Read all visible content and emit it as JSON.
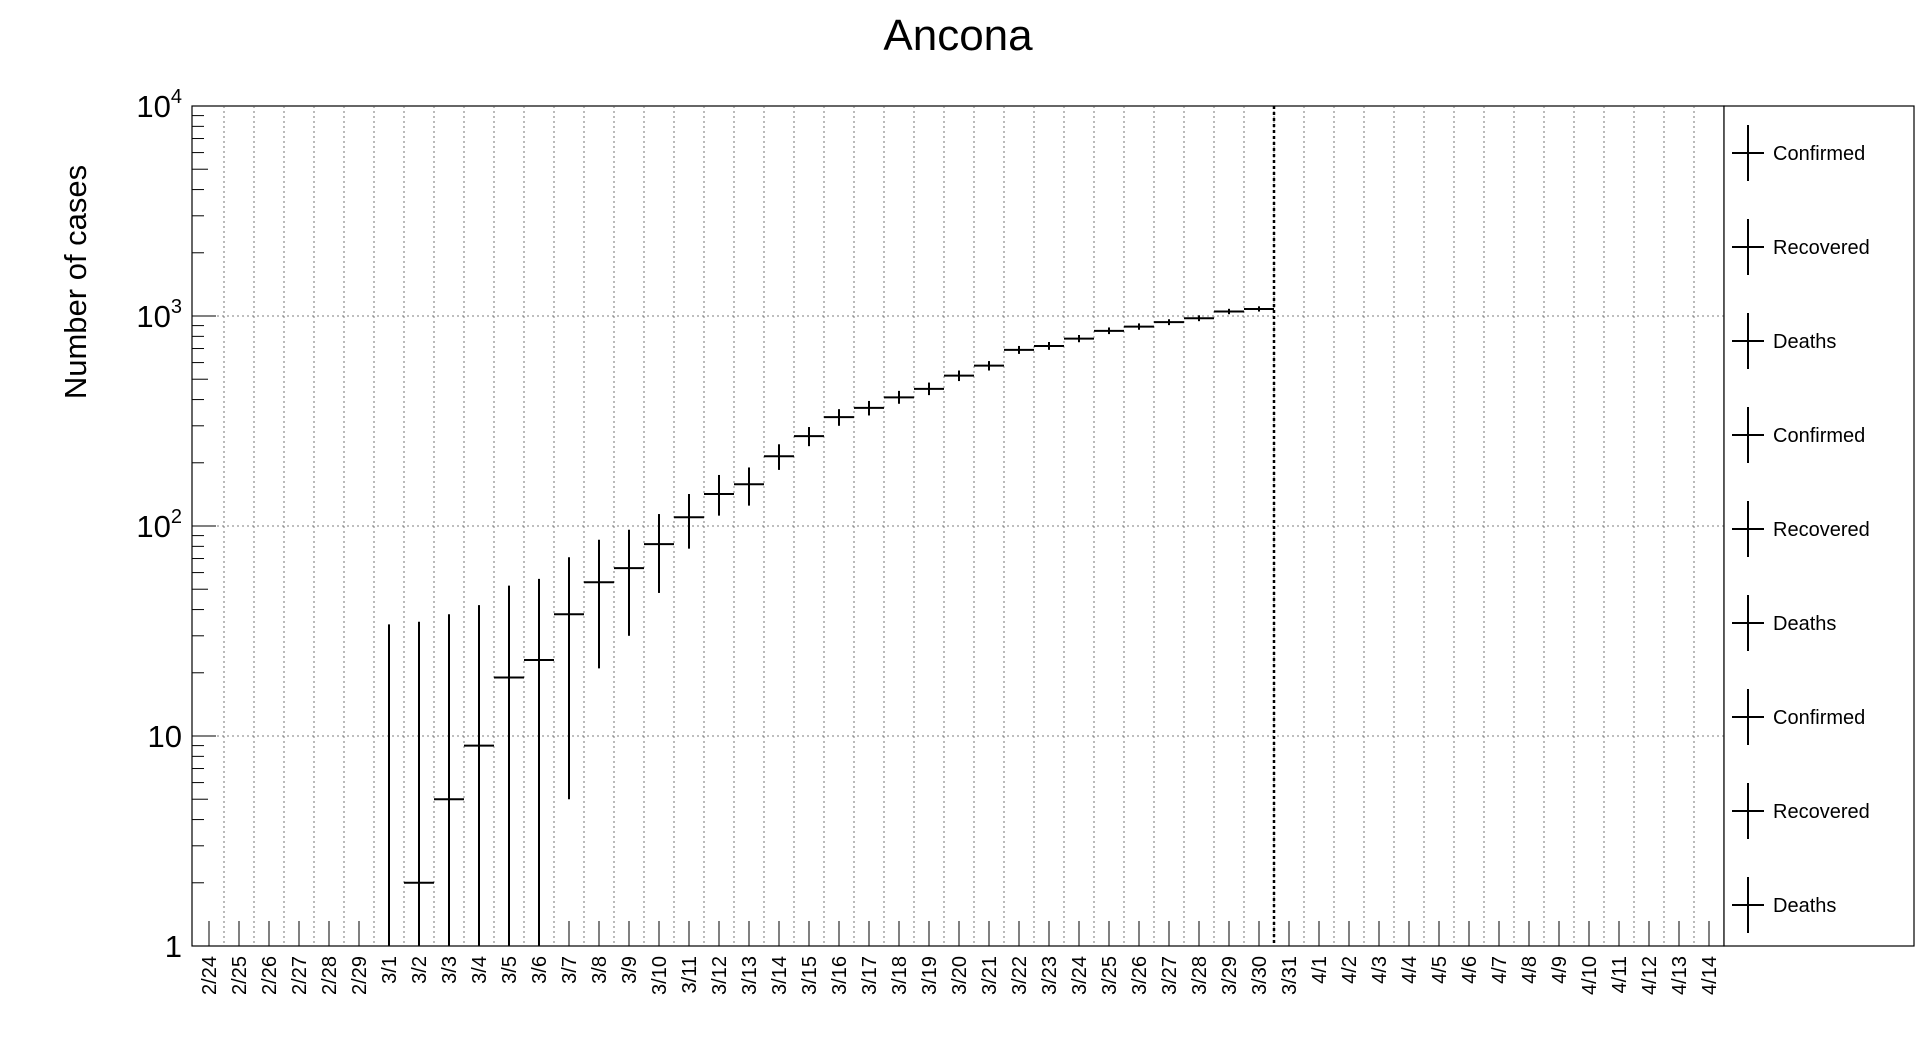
{
  "chart_data": {
    "type": "scatter",
    "title": "Ancona",
    "xlabel": "",
    "ylabel": "Number of cases",
    "y_scale": "log",
    "ylim": [
      1,
      10000
    ],
    "grid": true,
    "y_tick_labels": [
      {
        "value": 1,
        "base": "1",
        "exp": ""
      },
      {
        "value": 10,
        "base": "10",
        "exp": ""
      },
      {
        "value": 100,
        "base": "10",
        "exp": "2"
      },
      {
        "value": 1000,
        "base": "10",
        "exp": "3"
      },
      {
        "value": 10000,
        "base": "10",
        "exp": "4"
      }
    ],
    "categories": [
      "2/24",
      "2/25",
      "2/26",
      "2/27",
      "2/28",
      "2/29",
      "3/1",
      "3/2",
      "3/3",
      "3/4",
      "3/5",
      "3/6",
      "3/7",
      "3/8",
      "3/9",
      "3/10",
      "3/11",
      "3/12",
      "3/13",
      "3/14",
      "3/15",
      "3/16",
      "3/17",
      "3/18",
      "3/19",
      "3/20",
      "3/21",
      "3/22",
      "3/23",
      "3/24",
      "3/25",
      "3/26",
      "3/27",
      "3/28",
      "3/29",
      "3/30",
      "3/31",
      "4/1",
      "4/2",
      "4/3",
      "4/4",
      "4/5",
      "4/6",
      "4/7",
      "4/8",
      "4/9",
      "4/10",
      "4/11",
      "4/12",
      "4/13",
      "4/14"
    ],
    "marker_line_date": "3/30",
    "legend_position": "right",
    "legend": [
      "Confirmed",
      "Recovered",
      "Deaths",
      "Confirmed",
      "Recovered",
      "Deaths",
      "Confirmed",
      "Recovered",
      "Deaths"
    ],
    "series": [
      {
        "name": "Confirmed",
        "x": [
          "3/1",
          "3/2",
          "3/3",
          "3/4",
          "3/5",
          "3/6",
          "3/7",
          "3/8",
          "3/9",
          "3/10",
          "3/11",
          "3/12",
          "3/13",
          "3/14",
          "3/15",
          "3/16",
          "3/17",
          "3/18",
          "3/19",
          "3/20",
          "3/21",
          "3/22",
          "3/23",
          "3/24",
          "3/25",
          "3/26",
          "3/27",
          "3/28",
          "3/29",
          "3/30"
        ],
        "values": [
          0,
          2,
          5,
          9,
          19,
          23,
          38,
          54,
          63,
          82,
          110,
          142,
          158,
          215,
          268,
          330,
          365,
          410,
          450,
          520,
          580,
          690,
          720,
          780,
          850,
          890,
          935,
          975,
          1050,
          1080
        ],
        "err_low": [
          1,
          1,
          1,
          1,
          1,
          1,
          5,
          21,
          30,
          48,
          78,
          112,
          125,
          185,
          240,
          300,
          336,
          382,
          420,
          490,
          550,
          660,
          690,
          750,
          820,
          860,
          905,
          945,
          1020,
          1050
        ],
        "err_high": [
          34,
          35,
          38,
          42,
          52,
          56,
          71,
          86,
          96,
          114,
          142,
          175,
          190,
          245,
          296,
          360,
          394,
          440,
          482,
          550,
          610,
          720,
          752,
          812,
          882,
          922,
          965,
          1008,
          1082,
          1112
        ]
      }
    ]
  }
}
